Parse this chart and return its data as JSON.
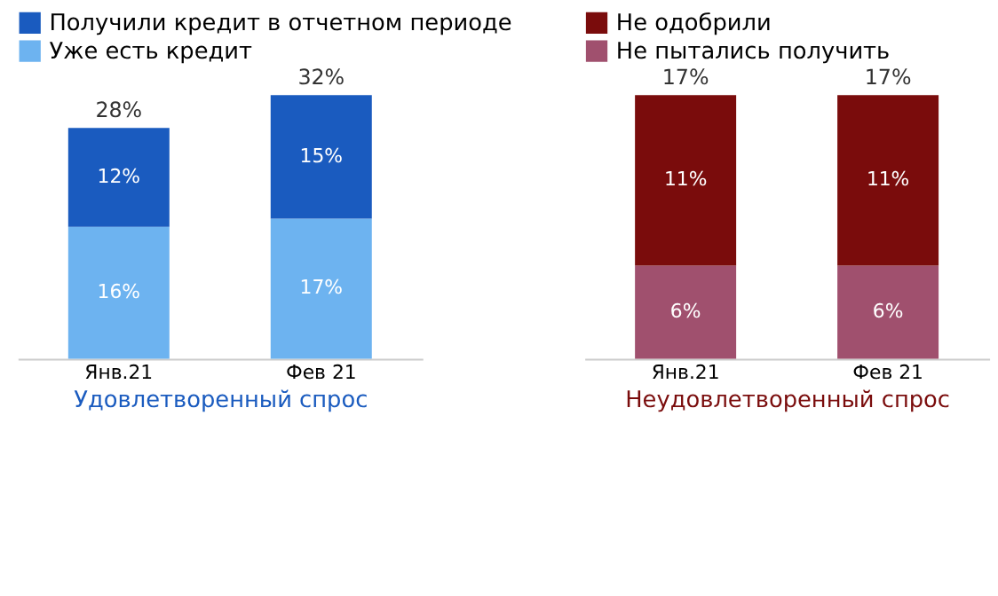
{
  "chart_data": [
    {
      "type": "bar",
      "stacked": true,
      "categories": [
        "Янв.21",
        "Фев 21"
      ],
      "xlabel": "Удовлетворенный спрос",
      "legend": "top",
      "grid": false,
      "totals": [
        "28%",
        "32%"
      ],
      "series": [
        {
          "name": "Уже есть кредит",
          "color": "#6db3f0",
          "values": [
            16,
            17
          ],
          "value_labels": [
            "16%",
            "17%"
          ]
        },
        {
          "name": "Получили кредит в отчетном периоде",
          "color": "#1a5bbf",
          "values": [
            12,
            15
          ],
          "value_labels": [
            "12%",
            "15%"
          ]
        }
      ]
    },
    {
      "type": "bar",
      "stacked": true,
      "categories": [
        "Янв.21",
        "Фев 21"
      ],
      "xlabel": "Неудовлетворенный спрос",
      "legend": "top",
      "grid": false,
      "totals": [
        "17%",
        "17%"
      ],
      "series": [
        {
          "name": "Не пытались получить",
          "color": "#a0506e",
          "values": [
            6,
            6
          ],
          "value_labels": [
            "6%",
            "6%"
          ]
        },
        {
          "name": "Не одобрили",
          "color": "#7a0c0c",
          "values": [
            11,
            11
          ],
          "value_labels": [
            "11%",
            "11%"
          ]
        }
      ]
    }
  ]
}
